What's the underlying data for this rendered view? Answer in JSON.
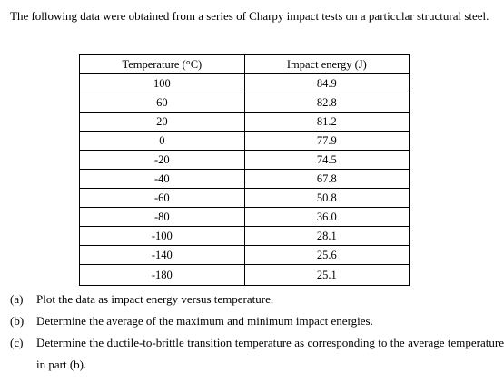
{
  "intro": "The following data were obtained from a series of Charpy impact tests on a particular structural steel.",
  "table": {
    "headers": [
      "Temperature (°C)",
      "Impact energy (J)"
    ],
    "rows": [
      [
        "100",
        "84.9"
      ],
      [
        "60",
        "82.8"
      ],
      [
        "20",
        "81.2"
      ],
      [
        "0",
        "77.9"
      ],
      [
        "-20",
        "74.5"
      ],
      [
        "-40",
        "67.8"
      ],
      [
        "-60",
        "50.8"
      ],
      [
        "-80",
        "36.0"
      ],
      [
        "-100",
        "28.1"
      ],
      [
        "-140",
        "25.6"
      ],
      [
        "-180",
        "25.1"
      ]
    ]
  },
  "questions": [
    {
      "marker": "(a)",
      "text": "Plot the data as impact energy versus temperature."
    },
    {
      "marker": "(b)",
      "text": "Determine the average of the maximum and minimum impact energies."
    },
    {
      "marker": "(c)",
      "text": "Determine the ductile-to-brittle transition temperature as corresponding to the average temperature in part (b)."
    }
  ]
}
